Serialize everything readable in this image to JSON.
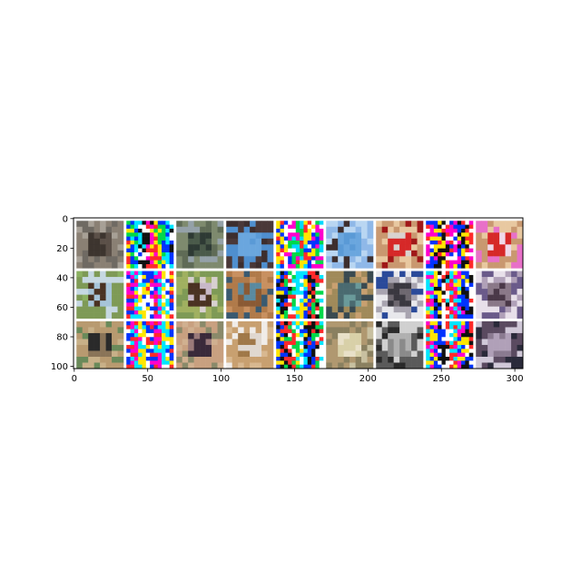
{
  "chart_data": {
    "type": "image-grid",
    "x_ticks": [
      0,
      50,
      100,
      150,
      200,
      250,
      300
    ],
    "y_ticks": [
      0,
      20,
      40,
      60,
      80,
      100
    ],
    "xlim": [
      -0.5,
      305.5
    ],
    "ylim": [
      101.5,
      -0.5
    ],
    "grid": false,
    "legend": "none",
    "grid_rows": 3,
    "grid_cols": 9,
    "tiles": [
      {
        "row": 0,
        "col": 0,
        "kind": "photo",
        "subject": "cat",
        "palette": [
          "#5b5048",
          "#8a8074",
          "#3d352f",
          "#a7a096",
          "#6f6a63"
        ]
      },
      {
        "row": 0,
        "col": 1,
        "kind": "noise",
        "palette": [
          "#ff2a2a",
          "#ffe600",
          "#00d84a",
          "#0033ff",
          "#00e5ff",
          "#ffffff",
          "#111111",
          "#ff00cc"
        ]
      },
      {
        "row": 0,
        "col": 2,
        "kind": "photo",
        "subject": "cat",
        "palette": [
          "#4a5a4a",
          "#7e8a6e",
          "#2e3a34",
          "#94a1a8",
          "#5f6b56"
        ]
      },
      {
        "row": 0,
        "col": 3,
        "kind": "photo",
        "subject": "airplane",
        "palette": [
          "#5a9ad6",
          "#4f8fcf",
          "#6aa6de",
          "#3d2e2e",
          "#4a3838"
        ]
      },
      {
        "row": 0,
        "col": 4,
        "kind": "noise",
        "palette": [
          "#00d8ff",
          "#ff2a2a",
          "#ffe600",
          "#0033ff",
          "#ffffff",
          "#ff00cc",
          "#00d84a"
        ]
      },
      {
        "row": 0,
        "col": 5,
        "kind": "photo",
        "subject": "airplane",
        "palette": [
          "#5a9ad6",
          "#8fb8e8",
          "#6aa6de",
          "#3d2e2e",
          "#b9d6f2"
        ]
      },
      {
        "row": 0,
        "col": 6,
        "kind": "photo",
        "subject": "car",
        "palette": [
          "#d9d3cf",
          "#c99870",
          "#d62828",
          "#a01818",
          "#e8c8a0"
        ]
      },
      {
        "row": 0,
        "col": 7,
        "kind": "noise",
        "palette": [
          "#ff2a2a",
          "#ffffff",
          "#ff00cc",
          "#0033ff",
          "#ffe600",
          "#111111"
        ]
      },
      {
        "row": 0,
        "col": 8,
        "kind": "photo",
        "subject": "car",
        "palette": [
          "#f0d8e8",
          "#c99870",
          "#d62828",
          "#e870c8",
          "#e8c8a0"
        ]
      },
      {
        "row": 1,
        "col": 0,
        "kind": "photo",
        "subject": "horse",
        "palette": [
          "#a6c4d8",
          "#7e9a56",
          "#4a3222",
          "#8bb060",
          "#c6d8e2"
        ]
      },
      {
        "row": 1,
        "col": 1,
        "kind": "noise",
        "palette": [
          "#ffffff",
          "#0033ff",
          "#ff2a2a",
          "#ff00cc",
          "#00e5ff",
          "#ffe600"
        ]
      },
      {
        "row": 1,
        "col": 2,
        "kind": "photo",
        "subject": "horse",
        "palette": [
          "#c8b8c8",
          "#7e9a56",
          "#4a3222",
          "#a0b060",
          "#d8d0d0"
        ]
      },
      {
        "row": 1,
        "col": 3,
        "kind": "photo",
        "subject": "cat",
        "palette": [
          "#5a8aa0",
          "#b07a4a",
          "#8a5a34",
          "#3a5a70",
          "#c89060"
        ]
      },
      {
        "row": 1,
        "col": 4,
        "kind": "noise",
        "palette": [
          "#00e5ff",
          "#ffe600",
          "#0033ff",
          "#111111",
          "#ff2a2a",
          "#00d84a",
          "#ffffff"
        ]
      },
      {
        "row": 1,
        "col": 5,
        "kind": "photo",
        "subject": "cat",
        "palette": [
          "#6a9a9a",
          "#a08a5a",
          "#4a6a70",
          "#c8a070",
          "#3a4a50"
        ]
      },
      {
        "row": 1,
        "col": 6,
        "kind": "photo",
        "subject": "truck",
        "palette": [
          "#6e6870",
          "#e8e8ec",
          "#3a3840",
          "#a8a4b0",
          "#2a4a9a"
        ]
      },
      {
        "row": 1,
        "col": 7,
        "kind": "noise",
        "palette": [
          "#ff2a2a",
          "#00e5ff",
          "#ff00cc",
          "#ffe600",
          "#0033ff",
          "#111111",
          "#ffffff"
        ]
      },
      {
        "row": 1,
        "col": 8,
        "kind": "photo",
        "subject": "truck",
        "palette": [
          "#8a7888",
          "#e8e0ea",
          "#4a3848",
          "#b0a0b8",
          "#6a5a8a"
        ]
      },
      {
        "row": 2,
        "col": 0,
        "kind": "photo",
        "subject": "horse",
        "palette": [
          "#8a7458",
          "#b89a70",
          "#2a2a2a",
          "#6a8a5a",
          "#c8b088"
        ]
      },
      {
        "row": 2,
        "col": 1,
        "kind": "noise",
        "palette": [
          "#ffffff",
          "#0033ff",
          "#ff2a2a",
          "#ff00cc",
          "#00e5ff",
          "#ffe600"
        ]
      },
      {
        "row": 2,
        "col": 2,
        "kind": "photo",
        "subject": "horse",
        "palette": [
          "#9a7a7a",
          "#c8a080",
          "#3a2a3a",
          "#8a8a6a",
          "#d0b090"
        ]
      },
      {
        "row": 2,
        "col": 3,
        "kind": "photo",
        "subject": "cat",
        "palette": [
          "#e0d8d0",
          "#c8a070",
          "#a07848",
          "#f0ece8",
          "#d8b890"
        ]
      },
      {
        "row": 2,
        "col": 4,
        "kind": "noise",
        "palette": [
          "#00e5ff",
          "#ffe600",
          "#0033ff",
          "#111111",
          "#ff2a2a",
          "#00d84a",
          "#ffffff"
        ]
      },
      {
        "row": 2,
        "col": 5,
        "kind": "photo",
        "subject": "cat",
        "palette": [
          "#d8d0a8",
          "#b09870",
          "#e8e0c8",
          "#8a8060",
          "#c8c0a0"
        ]
      },
      {
        "row": 2,
        "col": 6,
        "kind": "photo",
        "subject": "airplane",
        "palette": [
          "#8a8a8a",
          "#5a5a5a",
          "#b0b0b0",
          "#2a2a2a",
          "#d0d0d0"
        ]
      },
      {
        "row": 2,
        "col": 7,
        "kind": "noise",
        "palette": [
          "#ff2a2a",
          "#00e5ff",
          "#ff00cc",
          "#ffe600",
          "#0033ff",
          "#111111",
          "#ffffff"
        ]
      },
      {
        "row": 2,
        "col": 8,
        "kind": "photo",
        "subject": "airplane",
        "palette": [
          "#8a7a90",
          "#5a4a60",
          "#b0a0b8",
          "#2a2a3a",
          "#d0c8d8"
        ]
      }
    ]
  }
}
